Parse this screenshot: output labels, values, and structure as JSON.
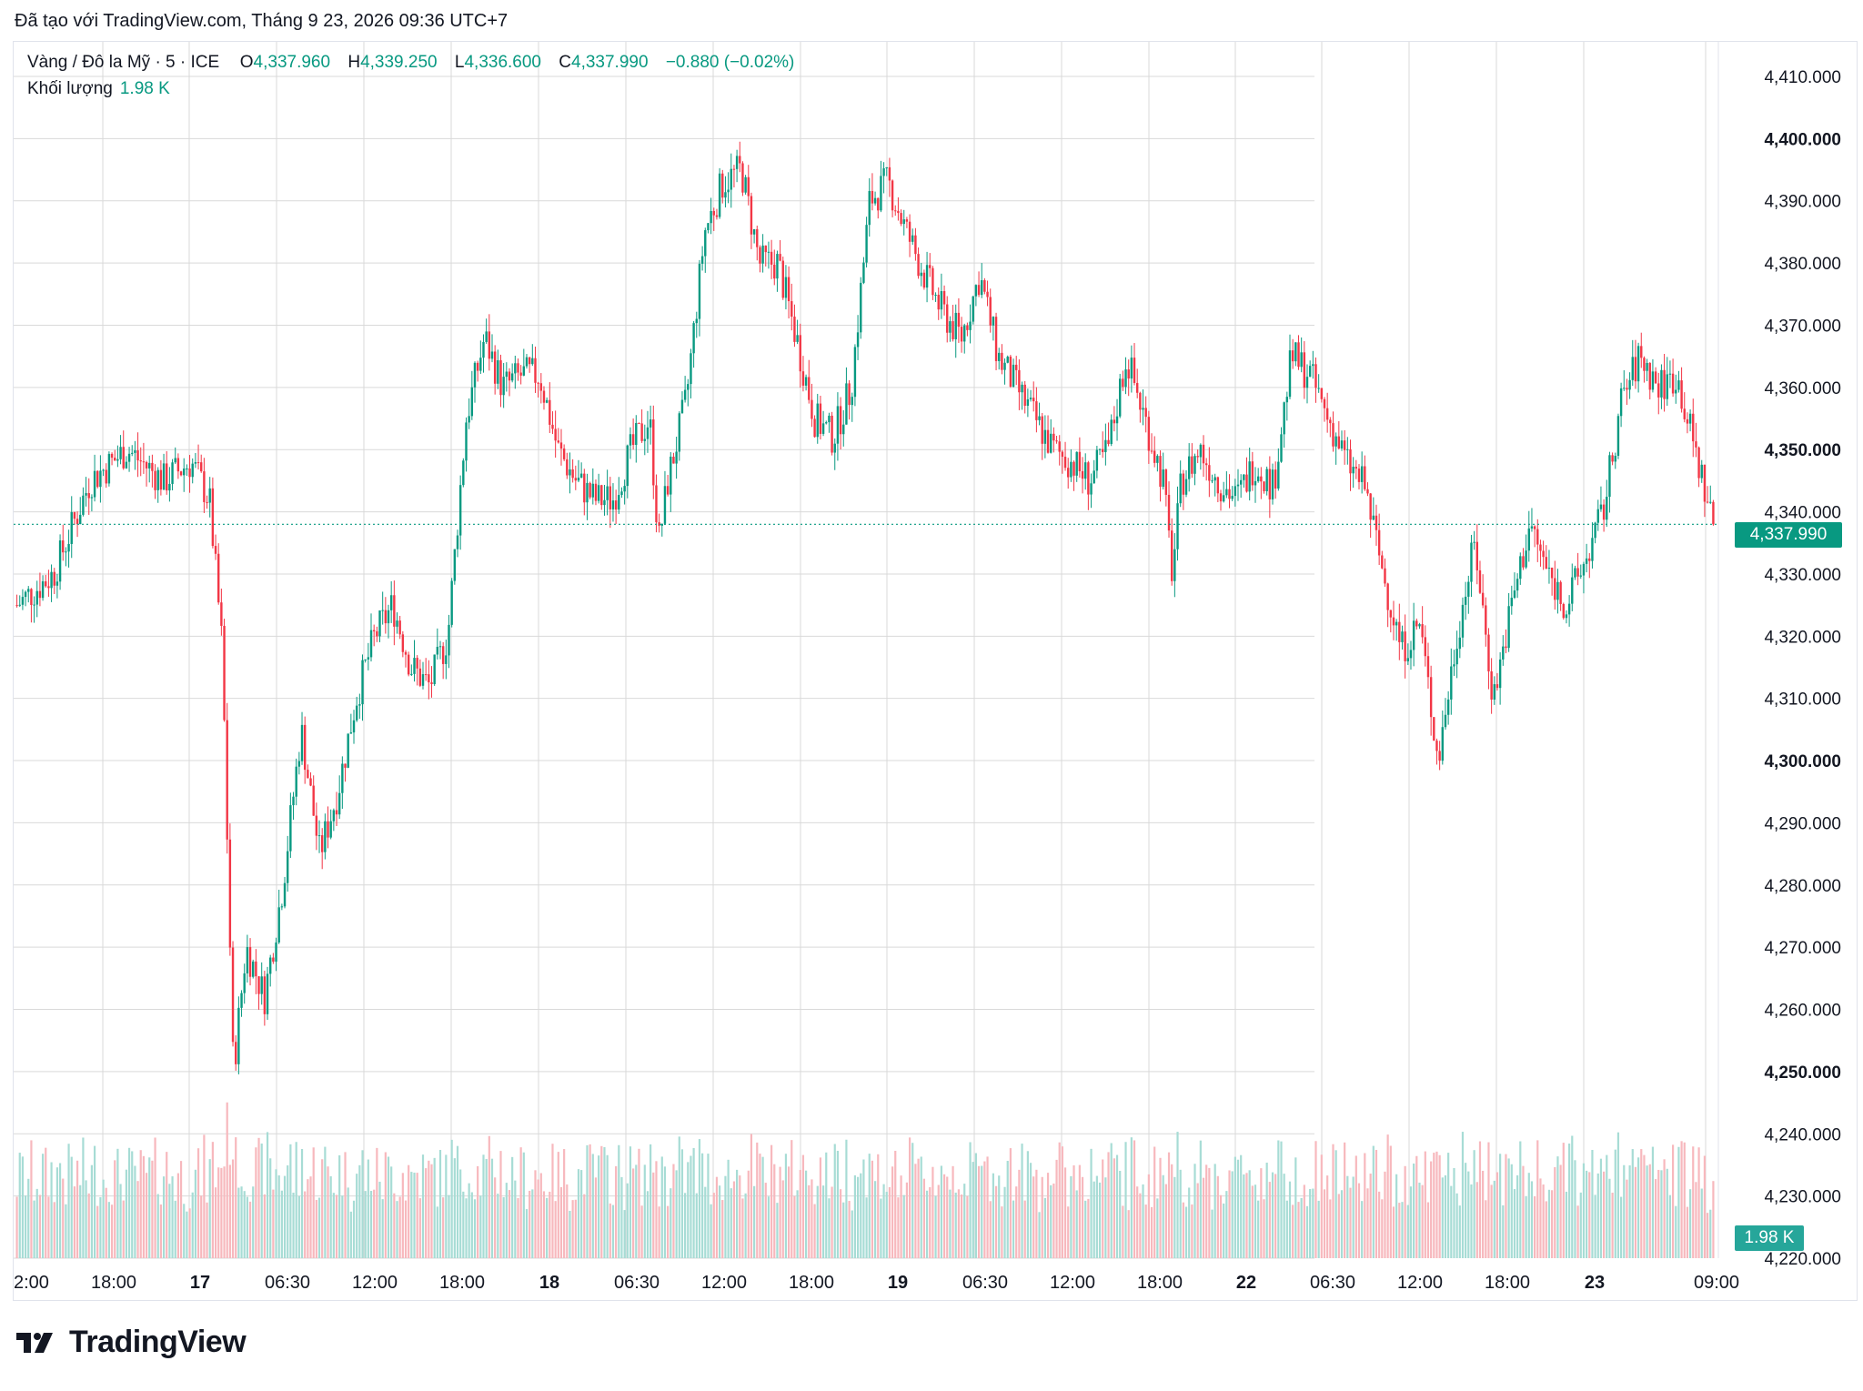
{
  "header": {
    "credit": "Đã tạo với TradingView.com, Tháng 9 23, 2026 09:36 UTC+7"
  },
  "legend": {
    "symbol": "Vàng / Đô la Mỹ · 5 · ICE",
    "o_label": "O",
    "o_value": "4,337.960",
    "h_label": "H",
    "h_value": "4,339.250",
    "l_label": "L",
    "l_value": "4,336.600",
    "c_label": "C",
    "c_value": "4,337.990",
    "change": "−0.880 (−0.02%)",
    "volume_label": "Khối lượng",
    "volume_value": "1.98 K"
  },
  "badges": {
    "price": "4,337.990",
    "volume": "1.98 K"
  },
  "brand": {
    "name": "TradingView",
    "logo_icon": "tradingview-logo-icon"
  },
  "colors": {
    "up": "#089981",
    "down": "#f23645",
    "grid": "#d9d9d9",
    "vol_up": "#a7dcd5",
    "vol_down": "#f7b8bd"
  },
  "chart_data": {
    "type": "candlestick",
    "ylim": [
      4220,
      4415
    ],
    "y_ticks": [
      {
        "value": 4220,
        "label": "4,220.000",
        "bold": false
      },
      {
        "value": 4230,
        "label": "4,230.000",
        "bold": false
      },
      {
        "value": 4240,
        "label": "4,240.000",
        "bold": false
      },
      {
        "value": 4250,
        "label": "4,250.000",
        "bold": true
      },
      {
        "value": 4260,
        "label": "4,260.000",
        "bold": false
      },
      {
        "value": 4270,
        "label": "4,270.000",
        "bold": false
      },
      {
        "value": 4280,
        "label": "4,280.000",
        "bold": false
      },
      {
        "value": 4290,
        "label": "4,290.000",
        "bold": false
      },
      {
        "value": 4300,
        "label": "4,300.000",
        "bold": true
      },
      {
        "value": 4310,
        "label": "4,310.000",
        "bold": false
      },
      {
        "value": 4320,
        "label": "4,320.000",
        "bold": false
      },
      {
        "value": 4330,
        "label": "4,330.000",
        "bold": false
      },
      {
        "value": 4340,
        "label": "4,340.000",
        "bold": false
      },
      {
        "value": 4350,
        "label": "4,350.000",
        "bold": true
      },
      {
        "value": 4360,
        "label": "4,360.000",
        "bold": false
      },
      {
        "value": 4370,
        "label": "4,370.000",
        "bold": false
      },
      {
        "value": 4380,
        "label": "4,380.000",
        "bold": false
      },
      {
        "value": 4390,
        "label": "4,390.000",
        "bold": false
      },
      {
        "value": 4400,
        "label": "4,400.000",
        "bold": true
      },
      {
        "value": 4410,
        "label": "4,410.000",
        "bold": false
      }
    ],
    "x_ticks": [
      {
        "label": "2:00",
        "bold": false
      },
      {
        "label": "18:00",
        "bold": false
      },
      {
        "label": "17",
        "bold": true
      },
      {
        "label": "06:30",
        "bold": false
      },
      {
        "label": "12:00",
        "bold": false
      },
      {
        "label": "18:00",
        "bold": false
      },
      {
        "label": "18",
        "bold": true
      },
      {
        "label": "06:30",
        "bold": false
      },
      {
        "label": "12:00",
        "bold": false
      },
      {
        "label": "18:00",
        "bold": false
      },
      {
        "label": "19",
        "bold": true
      },
      {
        "label": "06:30",
        "bold": false
      },
      {
        "label": "12:00",
        "bold": false
      },
      {
        "label": "18:00",
        "bold": false
      },
      {
        "label": "22",
        "bold": true
      },
      {
        "label": "06:30",
        "bold": false
      },
      {
        "label": "12:00",
        "bold": false
      },
      {
        "label": "18:00",
        "bold": false
      },
      {
        "label": "23",
        "bold": true
      },
      {
        "label": "09:00",
        "bold": false
      }
    ],
    "last_price": 4337.99,
    "price_path": [
      [
        0,
        4325
      ],
      [
        2,
        4330
      ],
      [
        4,
        4345
      ],
      [
        6,
        4350
      ],
      [
        8,
        4345
      ],
      [
        9.5,
        4348
      ],
      [
        10.5,
        4342
      ],
      [
        11.2,
        4318
      ],
      [
        11.8,
        4250
      ],
      [
        12.5,
        4270
      ],
      [
        13.5,
        4262
      ],
      [
        14.5,
        4280
      ],
      [
        15.5,
        4305
      ],
      [
        16.5,
        4285
      ],
      [
        17.5,
        4295
      ],
      [
        18.5,
        4310
      ],
      [
        19.5,
        4320
      ],
      [
        20.5,
        4325
      ],
      [
        21.5,
        4315
      ],
      [
        22.5,
        4312
      ],
      [
        23.5,
        4320
      ],
      [
        24.5,
        4355
      ],
      [
        25.5,
        4368
      ],
      [
        26.5,
        4360
      ],
      [
        27.5,
        4362
      ],
      [
        28.5,
        4362
      ],
      [
        29.5,
        4350
      ],
      [
        30.5,
        4345
      ],
      [
        31.5,
        4342
      ],
      [
        32.5,
        4342
      ],
      [
        33.5,
        4350
      ],
      [
        34.5,
        4355
      ],
      [
        35,
        4335
      ],
      [
        35.5,
        4345
      ],
      [
        36.5,
        4358
      ],
      [
        37.5,
        4385
      ],
      [
        38.5,
        4393
      ],
      [
        39.5,
        4395
      ],
      [
        40.5,
        4380
      ],
      [
        41.5,
        4380
      ],
      [
        42.5,
        4368
      ],
      [
        43.5,
        4355
      ],
      [
        44.5,
        4352
      ],
      [
        45.5,
        4360
      ],
      [
        46.5,
        4390
      ],
      [
        47.5,
        4393
      ],
      [
        48.5,
        4385
      ],
      [
        49.5,
        4378
      ],
      [
        50.5,
        4372
      ],
      [
        51.5,
        4368
      ],
      [
        52.5,
        4378
      ],
      [
        53.5,
        4365
      ],
      [
        54.5,
        4360
      ],
      [
        55.5,
        4355
      ],
      [
        56.5,
        4350
      ],
      [
        57.5,
        4348
      ],
      [
        58.5,
        4345
      ],
      [
        59.5,
        4350
      ],
      [
        60.5,
        4365
      ],
      [
        61.5,
        4355
      ],
      [
        62.5,
        4345
      ],
      [
        63,
        4330
      ],
      [
        63.5,
        4345
      ],
      [
        64.5,
        4350
      ],
      [
        65.5,
        4345
      ],
      [
        66.5,
        4342
      ],
      [
        67.5,
        4348
      ],
      [
        68.5,
        4344
      ],
      [
        69.5,
        4365
      ],
      [
        70.5,
        4362
      ],
      [
        71.5,
        4355
      ],
      [
        72.5,
        4348
      ],
      [
        73.5,
        4344
      ],
      [
        74.5,
        4330
      ],
      [
        75.5,
        4318
      ],
      [
        76.5,
        4322
      ],
      [
        77.5,
        4300
      ],
      [
        78.5,
        4320
      ],
      [
        79.5,
        4335
      ],
      [
        80.5,
        4310
      ],
      [
        81.5,
        4325
      ],
      [
        82.5,
        4338
      ],
      [
        83.5,
        4330
      ],
      [
        84.5,
        4325
      ],
      [
        85.5,
        4332
      ],
      [
        86.5,
        4340
      ],
      [
        87.5,
        4358
      ],
      [
        88.5,
        4365
      ],
      [
        89.5,
        4360
      ],
      [
        90.5,
        4362
      ],
      [
        91.5,
        4350
      ],
      [
        92.5,
        4338
      ]
    ],
    "volume": {
      "ylim_k": [
        0,
        3.5
      ],
      "last_k": 1.98
    }
  }
}
